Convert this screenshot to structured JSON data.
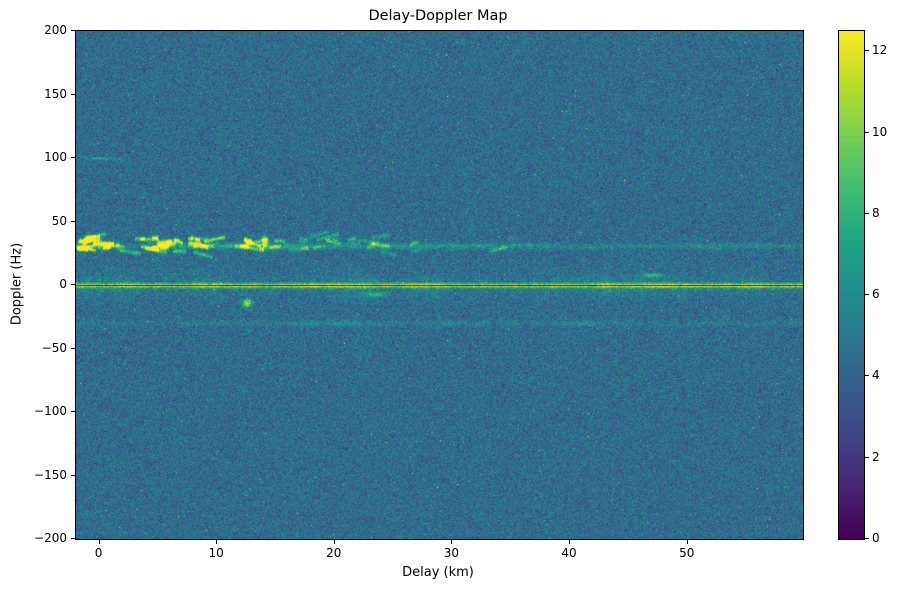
{
  "chart_data": {
    "type": "heatmap",
    "title": "Delay-Doppler Map",
    "xlabel": "Delay (km)",
    "ylabel": "Doppler (Hz)",
    "x_range": [
      -2,
      59.8
    ],
    "y_range": [
      -200,
      200
    ],
    "x_ticks": [
      0,
      10,
      20,
      30,
      40,
      50
    ],
    "x_tick_labels": [
      "0",
      "10",
      "20",
      "30",
      "40",
      "50"
    ],
    "y_ticks": [
      -200,
      -150,
      -100,
      -50,
      0,
      50,
      100,
      150,
      200
    ],
    "y_tick_labels": [
      "−200",
      "−150",
      "−100",
      "−50",
      "0",
      "50",
      "100",
      "150",
      "200"
    ],
    "grid": false,
    "colorbar": {
      "colormap": "viridis",
      "vmin": 0,
      "vmax": 12.5,
      "ticks": [
        0,
        2,
        4,
        6,
        8,
        10,
        12
      ],
      "tick_labels": [
        "0",
        "2",
        "4",
        "6",
        "8",
        "10",
        "12"
      ],
      "position": "right"
    },
    "background_noise": {
      "mean": 4.4,
      "std": 1.05
    },
    "features": [
      {
        "name": "zero-doppler-ridge",
        "y_hz": 0,
        "peak_value": 12.5,
        "width_hz": 4,
        "extent_km": [
          -2,
          59.8
        ]
      },
      {
        "name": "zero-doppler-dark-line",
        "y_hz": 0,
        "value": 0.8,
        "width_hz": 1,
        "extent_km": [
          -2,
          59.8
        ]
      },
      {
        "name": "positive-doppler-band",
        "y_hz": 31,
        "peak_value": 11,
        "width_hz": 6,
        "extent_km": [
          -2,
          50
        ],
        "strongest_km": [
          -2,
          16
        ]
      },
      {
        "name": "negative-doppler-band",
        "y_hz": -30,
        "peak_value": 6.5,
        "width_hz": 5,
        "extent_km": [
          -2,
          42
        ]
      },
      {
        "name": "bright-spot",
        "x_km": 12.5,
        "y_hz": -14,
        "value": 11.5,
        "sx_km": 0.4,
        "sy_hz": 3
      },
      {
        "name": "bright-streak",
        "x_km": 14,
        "y_hz": 34,
        "value": 12,
        "sx_km": 0.25,
        "sy_hz": 5
      },
      {
        "name": "faint-mark",
        "x_km": 0,
        "y_hz": 100,
        "value": 7,
        "sx_km": 1.2,
        "sy_hz": 1.2
      },
      {
        "name": "faint-mark",
        "x_km": 47,
        "y_hz": 8,
        "value": 8,
        "sx_km": 0.8,
        "sy_hz": 1.5
      },
      {
        "name": "faint-mark",
        "x_km": 23.5,
        "y_hz": -7,
        "value": 7.5,
        "sx_km": 0.9,
        "sy_hz": 2
      }
    ]
  }
}
